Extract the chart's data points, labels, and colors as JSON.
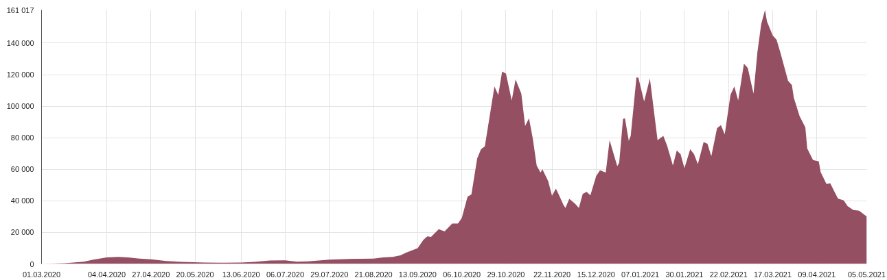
{
  "chart_data": {
    "type": "area",
    "grid": true,
    "xlim": [
      "2020-03-01",
      "2021-05-05"
    ],
    "xticks": [
      {
        "value": "2020-03-01",
        "label": "01.03.2020"
      },
      {
        "value": "2020-04-04",
        "label": "04.04.2020"
      },
      {
        "value": "2020-04-27",
        "label": "27.04.2020"
      },
      {
        "value": "2020-05-20",
        "label": "20.05.2020"
      },
      {
        "value": "2020-06-13",
        "label": "13.06.2020"
      },
      {
        "value": "2020-07-06",
        "label": "06.07.2020"
      },
      {
        "value": "2020-07-29",
        "label": "29.07.2020"
      },
      {
        "value": "2020-08-21",
        "label": "21.08.2020"
      },
      {
        "value": "2020-09-13",
        "label": "13.09.2020"
      },
      {
        "value": "2020-10-06",
        "label": "06.10.2020"
      },
      {
        "value": "2020-10-29",
        "label": "29.10.2020"
      },
      {
        "value": "2020-11-22",
        "label": "22.11.2020"
      },
      {
        "value": "2020-12-15",
        "label": "15.12.2020"
      },
      {
        "value": "2021-01-07",
        "label": "07.01.2021"
      },
      {
        "value": "2021-01-30",
        "label": "30.01.2021"
      },
      {
        "value": "2021-02-22",
        "label": "22.02.2021"
      },
      {
        "value": "2021-03-17",
        "label": "17.03.2021"
      },
      {
        "value": "2021-04-09",
        "label": "09.04.2021"
      },
      {
        "value": "2021-05-05",
        "label": "05.05.2021"
      }
    ],
    "ylim": [
      0,
      161017
    ],
    "yticks": [
      0,
      {
        "value": 20000,
        "label": "20 000"
      },
      {
        "value": 40000,
        "label": "40 000"
      },
      {
        "value": 60000,
        "label": "60 000"
      },
      {
        "value": 80000,
        "label": "80 000"
      },
      {
        "value": 100000,
        "label": "100 000"
      },
      {
        "value": 120000,
        "label": "120 000"
      },
      {
        "value": 140000,
        "label": "140 000"
      },
      {
        "value": 161017,
        "label": "161 017"
      }
    ],
    "series": [
      {
        "color": "#944f62",
        "x": [
          "2020-03-01",
          "2020-03-13",
          "2020-03-23",
          "2020-03-28",
          "2020-04-04",
          "2020-04-10",
          "2020-04-15",
          "2020-04-21",
          "2020-04-27",
          "2020-05-05",
          "2020-05-13",
          "2020-05-25",
          "2020-06-03",
          "2020-06-13",
          "2020-06-20",
          "2020-06-25",
          "2020-06-28",
          "2020-07-06",
          "2020-07-09",
          "2020-07-12",
          "2020-07-18",
          "2020-07-29",
          "2020-08-06",
          "2020-08-21",
          "2020-08-26",
          "2020-08-31",
          "2020-09-04",
          "2020-09-07",
          "2020-09-13",
          "2020-09-16",
          "2020-09-18",
          "2020-09-20",
          "2020-09-24",
          "2020-09-27",
          "2020-10-01",
          "2020-10-04",
          "2020-10-06",
          "2020-10-09",
          "2020-10-11",
          "2020-10-14",
          "2020-10-16",
          "2020-10-18",
          "2020-10-21",
          "2020-10-23",
          "2020-10-25",
          "2020-10-27",
          "2020-10-29",
          "2020-11-01",
          "2020-11-03",
          "2020-11-06",
          "2020-11-08",
          "2020-11-10",
          "2020-11-12",
          "2020-11-14",
          "2020-11-16",
          "2020-11-17",
          "2020-11-20",
          "2020-11-22",
          "2020-11-24",
          "2020-11-25",
          "2020-11-28",
          "2020-11-29",
          "2020-12-01",
          "2020-12-04",
          "2020-12-06",
          "2020-12-08",
          "2020-12-10",
          "2020-12-12",
          "2020-12-15",
          "2020-12-17",
          "2020-12-20",
          "2020-12-22",
          "2020-12-26",
          "2020-12-27",
          "2020-12-29",
          "2020-12-30",
          "2021-01-01",
          "2021-01-02",
          "2021-01-05",
          "2021-01-06",
          "2021-01-09",
          "2021-01-12",
          "2021-01-16",
          "2021-01-19",
          "2021-01-21",
          "2021-01-24",
          "2021-01-26",
          "2021-01-28",
          "2021-01-30",
          "2021-02-02",
          "2021-02-04",
          "2021-02-06",
          "2021-02-09",
          "2021-02-11",
          "2021-02-13",
          "2021-02-16",
          "2021-02-18",
          "2021-02-20",
          "2021-02-23",
          "2021-02-25",
          "2021-02-27",
          "2021-03-02",
          "2021-03-04",
          "2021-03-07",
          "2021-03-09",
          "2021-03-11",
          "2021-03-13",
          "2021-03-14",
          "2021-03-17",
          "2021-03-19",
          "2021-03-21",
          "2021-03-25",
          "2021-03-27",
          "2021-03-28",
          "2021-03-31",
          "2021-04-03",
          "2021-04-04",
          "2021-04-07",
          "2021-04-10",
          "2021-04-11",
          "2021-04-14",
          "2021-04-16",
          "2021-04-18",
          "2021-04-20",
          "2021-04-23",
          "2021-04-25",
          "2021-04-28",
          "2021-05-01",
          "2021-05-05"
        ],
        "values": [
          0,
          400,
          1400,
          2700,
          4100,
          4500,
          4100,
          3400,
          2900,
          1800,
          1260,
          900,
          720,
          900,
          1260,
          1800,
          2200,
          2300,
          1800,
          1440,
          1600,
          2700,
          3060,
          3400,
          4100,
          4500,
          5400,
          7200,
          10000,
          15300,
          17500,
          17100,
          22000,
          20600,
          25600,
          25600,
          29200,
          42600,
          44000,
          66800,
          72700,
          74500,
          97300,
          112500,
          107100,
          122000,
          120600,
          103600,
          117000,
          108000,
          87400,
          92300,
          79400,
          62400,
          57900,
          60000,
          52500,
          43200,
          47700,
          45300,
          37300,
          35500,
          41200,
          38200,
          35500,
          44400,
          45700,
          43500,
          55700,
          59300,
          57900,
          78500,
          62000,
          64100,
          91900,
          92300,
          78000,
          81200,
          118300,
          118000,
          103000,
          117600,
          78500,
          81200,
          74900,
          62400,
          71900,
          69500,
          60600,
          72700,
          69500,
          63300,
          77200,
          76200,
          68300,
          86000,
          88000,
          82100,
          107200,
          112500,
          103600,
          126900,
          124200,
          108000,
          134000,
          152000,
          161017,
          153700,
          144800,
          142100,
          134000,
          116100,
          113400,
          105400,
          93700,
          86600,
          73100,
          65900,
          65000,
          58200,
          50700,
          51100,
          46200,
          41400,
          40300,
          36700,
          34200,
          33700,
          30100
        ]
      }
    ]
  }
}
